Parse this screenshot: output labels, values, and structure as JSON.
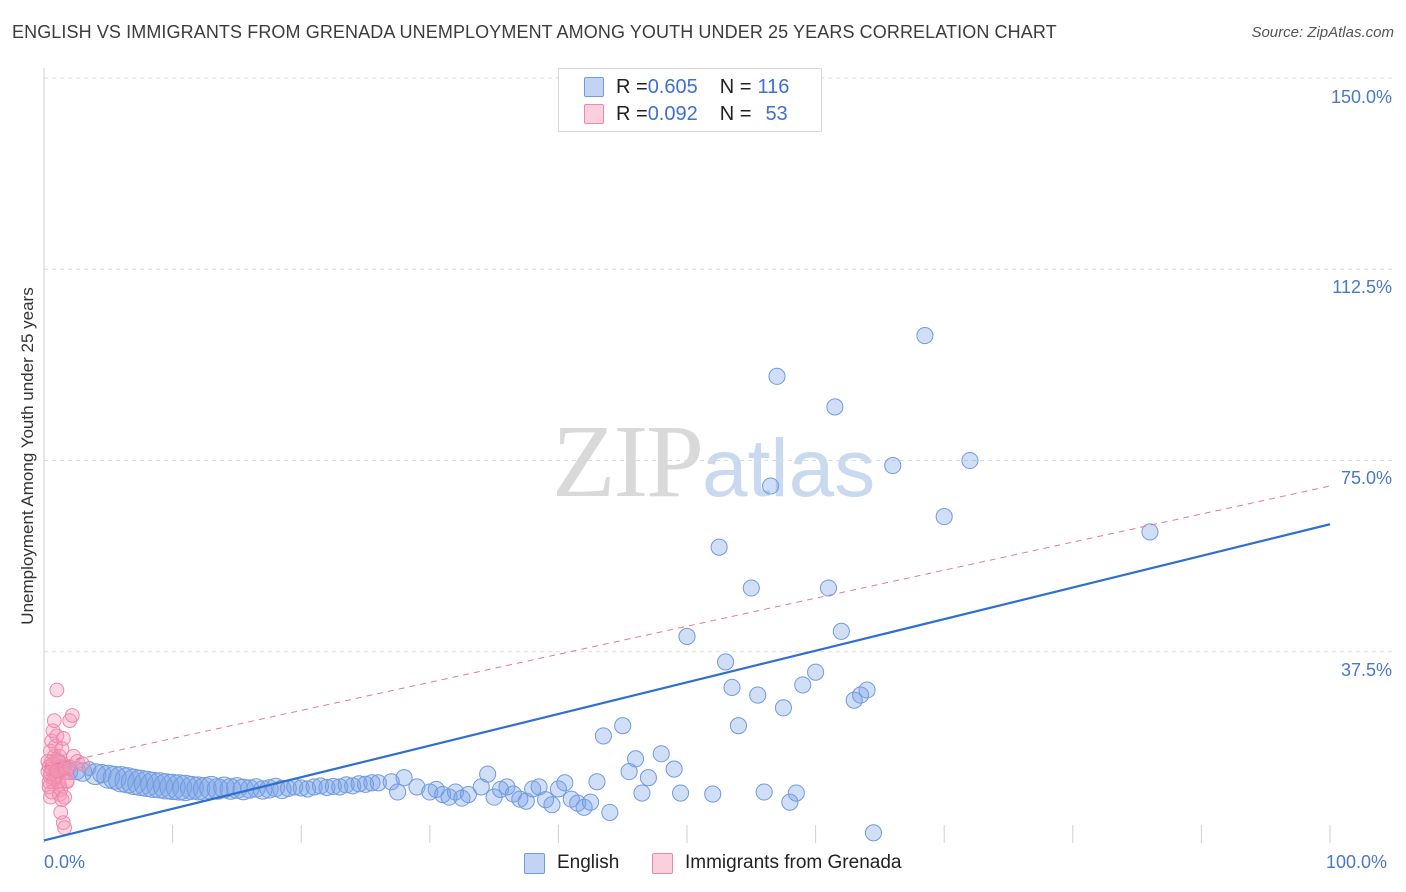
{
  "title": "ENGLISH VS IMMIGRANTS FROM GRENADA UNEMPLOYMENT AMONG YOUTH UNDER 25 YEARS CORRELATION CHART",
  "source": "Source: ZipAtlas.com",
  "watermark": {
    "zip": "ZIP",
    "atlas": "atlas"
  },
  "colors": {
    "english_fill": "rgba(120,160,230,0.35)",
    "english_stroke": "#6f9be0",
    "english_line": "#2f6fd0",
    "grenada_fill": "rgba(245,150,180,0.35)",
    "grenada_stroke": "#ee88aa",
    "grenada_line": "#e8789c",
    "grid": "#dcdcdc",
    "tick_label": "#4a78c8"
  },
  "legend_top": {
    "rows": [
      {
        "r_label": "R = ",
        "r_value": "0.605",
        "n_label": "N = ",
        "n_value": "116"
      },
      {
        "r_label": "R = ",
        "r_value": "0.092",
        "n_label": "N = ",
        "n_value": "53"
      }
    ]
  },
  "legend_bottom": {
    "english": "English",
    "grenada": "Immigrants from Grenada"
  },
  "chart_data": {
    "type": "scatter",
    "title": "ENGLISH VS IMMIGRANTS FROM GRENADA UNEMPLOYMENT AMONG YOUTH UNDER 25 YEARS CORRELATION CHART",
    "xlabel": "",
    "ylabel": "Unemployment Among Youth under 25 years",
    "xlim": [
      0,
      100
    ],
    "ylim": [
      0,
      150
    ],
    "x_tick_labels": [
      "0.0%",
      "100.0%"
    ],
    "y_ticks": [
      37.5,
      75.0,
      112.5,
      150.0
    ],
    "y_tick_labels": [
      "37.5%",
      "75.0%",
      "112.5%",
      "150.0%"
    ],
    "grid": true,
    "legend": "bottom",
    "series": [
      {
        "name": "English",
        "r": 0.605,
        "n": 116,
        "trend": {
          "x": [
            0,
            100
          ],
          "y": [
            0.5,
            62.5
          ],
          "style": "solid"
        },
        "points": [
          [
            1,
            15,
            5
          ],
          [
            1.5,
            14.5,
            6
          ],
          [
            2,
            14,
            7
          ],
          [
            2.5,
            14.2,
            8
          ],
          [
            3,
            13.9,
            8
          ],
          [
            3.5,
            14.6,
            6
          ],
          [
            4,
            13.5,
            9
          ],
          [
            4.5,
            13.6,
            8
          ],
          [
            5,
            13,
            10
          ],
          [
            5.5,
            12.8,
            10
          ],
          [
            6,
            12.5,
            11
          ],
          [
            6.5,
            12.3,
            11
          ],
          [
            7,
            12,
            11
          ],
          [
            7.5,
            11.8,
            11
          ],
          [
            8,
            11.6,
            11
          ],
          [
            8.5,
            11.4,
            11
          ],
          [
            9,
            11.3,
            11
          ],
          [
            9.5,
            11.1,
            11
          ],
          [
            10,
            11,
            11
          ],
          [
            10.5,
            10.9,
            11
          ],
          [
            11,
            10.8,
            11
          ],
          [
            11.5,
            10.8,
            10
          ],
          [
            12,
            10.7,
            10
          ],
          [
            12.5,
            10.6,
            10
          ],
          [
            13,
            10.8,
            10
          ],
          [
            13.5,
            10.6,
            9
          ],
          [
            14,
            10.9,
            9
          ],
          [
            14.5,
            10.6,
            9
          ],
          [
            15,
            10.8,
            9
          ],
          [
            15.5,
            10.5,
            9
          ],
          [
            16,
            10.6,
            8
          ],
          [
            16.5,
            10.8,
            8
          ],
          [
            17,
            10.4,
            8
          ],
          [
            17.5,
            10.6,
            8
          ],
          [
            18,
            10.9,
            8
          ],
          [
            18.5,
            10.5,
            8
          ],
          [
            19,
            10.7,
            7
          ],
          [
            19.5,
            11,
            7
          ],
          [
            20,
            10.8,
            7
          ],
          [
            20.5,
            10.6,
            7
          ],
          [
            21,
            11,
            7
          ],
          [
            21.5,
            11.2,
            7
          ],
          [
            22,
            10.9,
            7
          ],
          [
            22.5,
            11.1,
            7
          ],
          [
            23,
            11,
            7
          ],
          [
            23.5,
            11.4,
            7
          ],
          [
            24,
            11.2,
            7
          ],
          [
            24.5,
            11.6,
            7
          ],
          [
            25,
            11.5,
            7
          ],
          [
            25.5,
            11.8,
            7
          ],
          [
            26,
            11.8,
            7
          ],
          [
            27,
            12,
            7
          ],
          [
            27.5,
            10,
            7
          ],
          [
            28,
            12.8,
            7
          ],
          [
            29,
            11,
            7
          ],
          [
            30,
            10,
            7
          ],
          [
            30.5,
            10.5,
            7
          ],
          [
            31,
            9.5,
            7
          ],
          [
            31.5,
            9,
            7
          ],
          [
            32,
            10,
            7
          ],
          [
            32.5,
            8.8,
            7
          ],
          [
            33,
            9.5,
            7
          ],
          [
            34,
            11,
            7
          ],
          [
            34.5,
            13.5,
            7
          ],
          [
            35,
            9,
            7
          ],
          [
            35.5,
            10.5,
            7
          ],
          [
            36,
            11,
            7
          ],
          [
            36.5,
            9.6,
            7
          ],
          [
            37,
            8.6,
            7
          ],
          [
            37.5,
            8.2,
            7
          ],
          [
            38,
            10.6,
            7
          ],
          [
            38.5,
            11,
            7
          ],
          [
            39,
            8.5,
            7
          ],
          [
            39.5,
            7.5,
            7
          ],
          [
            40,
            10.6,
            7
          ],
          [
            40.5,
            11.8,
            7
          ],
          [
            41,
            8.6,
            7
          ],
          [
            41.5,
            7.8,
            7
          ],
          [
            42,
            7,
            7
          ],
          [
            42.5,
            8,
            7
          ],
          [
            43,
            12,
            7
          ],
          [
            43.5,
            21,
            7
          ],
          [
            44,
            6,
            7
          ],
          [
            45,
            23,
            7
          ],
          [
            45.5,
            14,
            7
          ],
          [
            46,
            16.5,
            7
          ],
          [
            46.5,
            9.8,
            7
          ],
          [
            47,
            12.8,
            7
          ],
          [
            48,
            17.5,
            7
          ],
          [
            49,
            14.5,
            7
          ],
          [
            49.5,
            9.8,
            7
          ],
          [
            50,
            40.5,
            7
          ],
          [
            52,
            9.6,
            7
          ],
          [
            52.5,
            58,
            7
          ],
          [
            53,
            35.5,
            7
          ],
          [
            53.5,
            30.5,
            7
          ],
          [
            54,
            23,
            7
          ],
          [
            55,
            50,
            7
          ],
          [
            55.5,
            29,
            7
          ],
          [
            56,
            10,
            7
          ],
          [
            56.5,
            70,
            7
          ],
          [
            57,
            91.5,
            7
          ],
          [
            57.5,
            26.5,
            7
          ],
          [
            58,
            8,
            7
          ],
          [
            58.5,
            9.8,
            7
          ],
          [
            59,
            31,
            7
          ],
          [
            60,
            33.5,
            7
          ],
          [
            61,
            50,
            7
          ],
          [
            61.5,
            85.5,
            7
          ],
          [
            62,
            41.5,
            7
          ],
          [
            63,
            28,
            7
          ],
          [
            63.5,
            29,
            7
          ],
          [
            64,
            30,
            7
          ],
          [
            64.5,
            2,
            7
          ],
          [
            66,
            74,
            7
          ],
          [
            68.5,
            99.5,
            7
          ],
          [
            70,
            64,
            7
          ],
          [
            72,
            75,
            7
          ],
          [
            86,
            61,
            7
          ],
          [
            1.2,
            16,
            5
          ]
        ]
      },
      {
        "name": "Immigrants from Grenada",
        "r": 0.092,
        "n": 53,
        "trend": {
          "x": [
            0,
            100
          ],
          "y": [
            15,
            70
          ],
          "style": "dashed"
        },
        "points": [
          [
            0.3,
            14,
            6
          ],
          [
            0.4,
            15,
            6
          ],
          [
            0.5,
            13,
            6
          ],
          [
            0.6,
            16,
            6
          ],
          [
            0.7,
            12,
            6
          ],
          [
            0.5,
            18,
            6
          ],
          [
            0.6,
            20,
            6
          ],
          [
            0.8,
            17,
            6
          ],
          [
            0.9,
            14,
            6
          ],
          [
            1.0,
            13,
            6
          ],
          [
            1.1,
            15,
            6
          ],
          [
            1.2,
            16,
            6
          ],
          [
            0.4,
            11,
            6
          ],
          [
            0.5,
            9,
            6
          ],
          [
            0.6,
            10,
            6
          ],
          [
            0.7,
            22,
            6
          ],
          [
            0.8,
            24,
            6
          ],
          [
            0.9,
            19,
            6
          ],
          [
            1.0,
            21,
            6
          ],
          [
            1.1,
            12,
            6
          ],
          [
            1.2,
            17,
            6
          ],
          [
            1.3,
            14,
            6
          ],
          [
            1.4,
            15,
            6
          ],
          [
            0.3,
            16,
            6
          ],
          [
            0.5,
            13.5,
            6
          ],
          [
            0.6,
            14.5,
            6
          ],
          [
            0.7,
            15.5,
            6
          ],
          [
            0.8,
            12.5,
            6
          ],
          [
            0.9,
            13.2,
            6
          ],
          [
            1.0,
            14.2,
            6
          ],
          [
            1.1,
            16.2,
            6
          ],
          [
            1.2,
            11.5,
            6
          ],
          [
            1.3,
            10.5,
            6
          ],
          [
            1.4,
            18.5,
            6
          ],
          [
            1.5,
            20.5,
            6
          ],
          [
            1.6,
            14.8,
            6
          ],
          [
            1.7,
            13.8,
            6
          ],
          [
            1.8,
            12.2,
            6
          ],
          [
            2.0,
            24,
            6
          ],
          [
            2.2,
            25,
            6
          ],
          [
            1.0,
            30,
            6
          ],
          [
            1.5,
            4,
            6
          ],
          [
            1.3,
            6,
            6
          ],
          [
            1.6,
            3,
            6
          ],
          [
            1.2,
            9.5,
            6
          ],
          [
            1.4,
            8.5,
            6
          ],
          [
            1.6,
            9,
            6
          ],
          [
            1.8,
            12,
            6
          ],
          [
            2.0,
            15,
            6
          ],
          [
            2.3,
            17,
            6
          ],
          [
            2.6,
            16,
            6
          ],
          [
            3.0,
            15.5,
            6
          ],
          [
            0.4,
            12,
            6
          ]
        ]
      }
    ]
  }
}
